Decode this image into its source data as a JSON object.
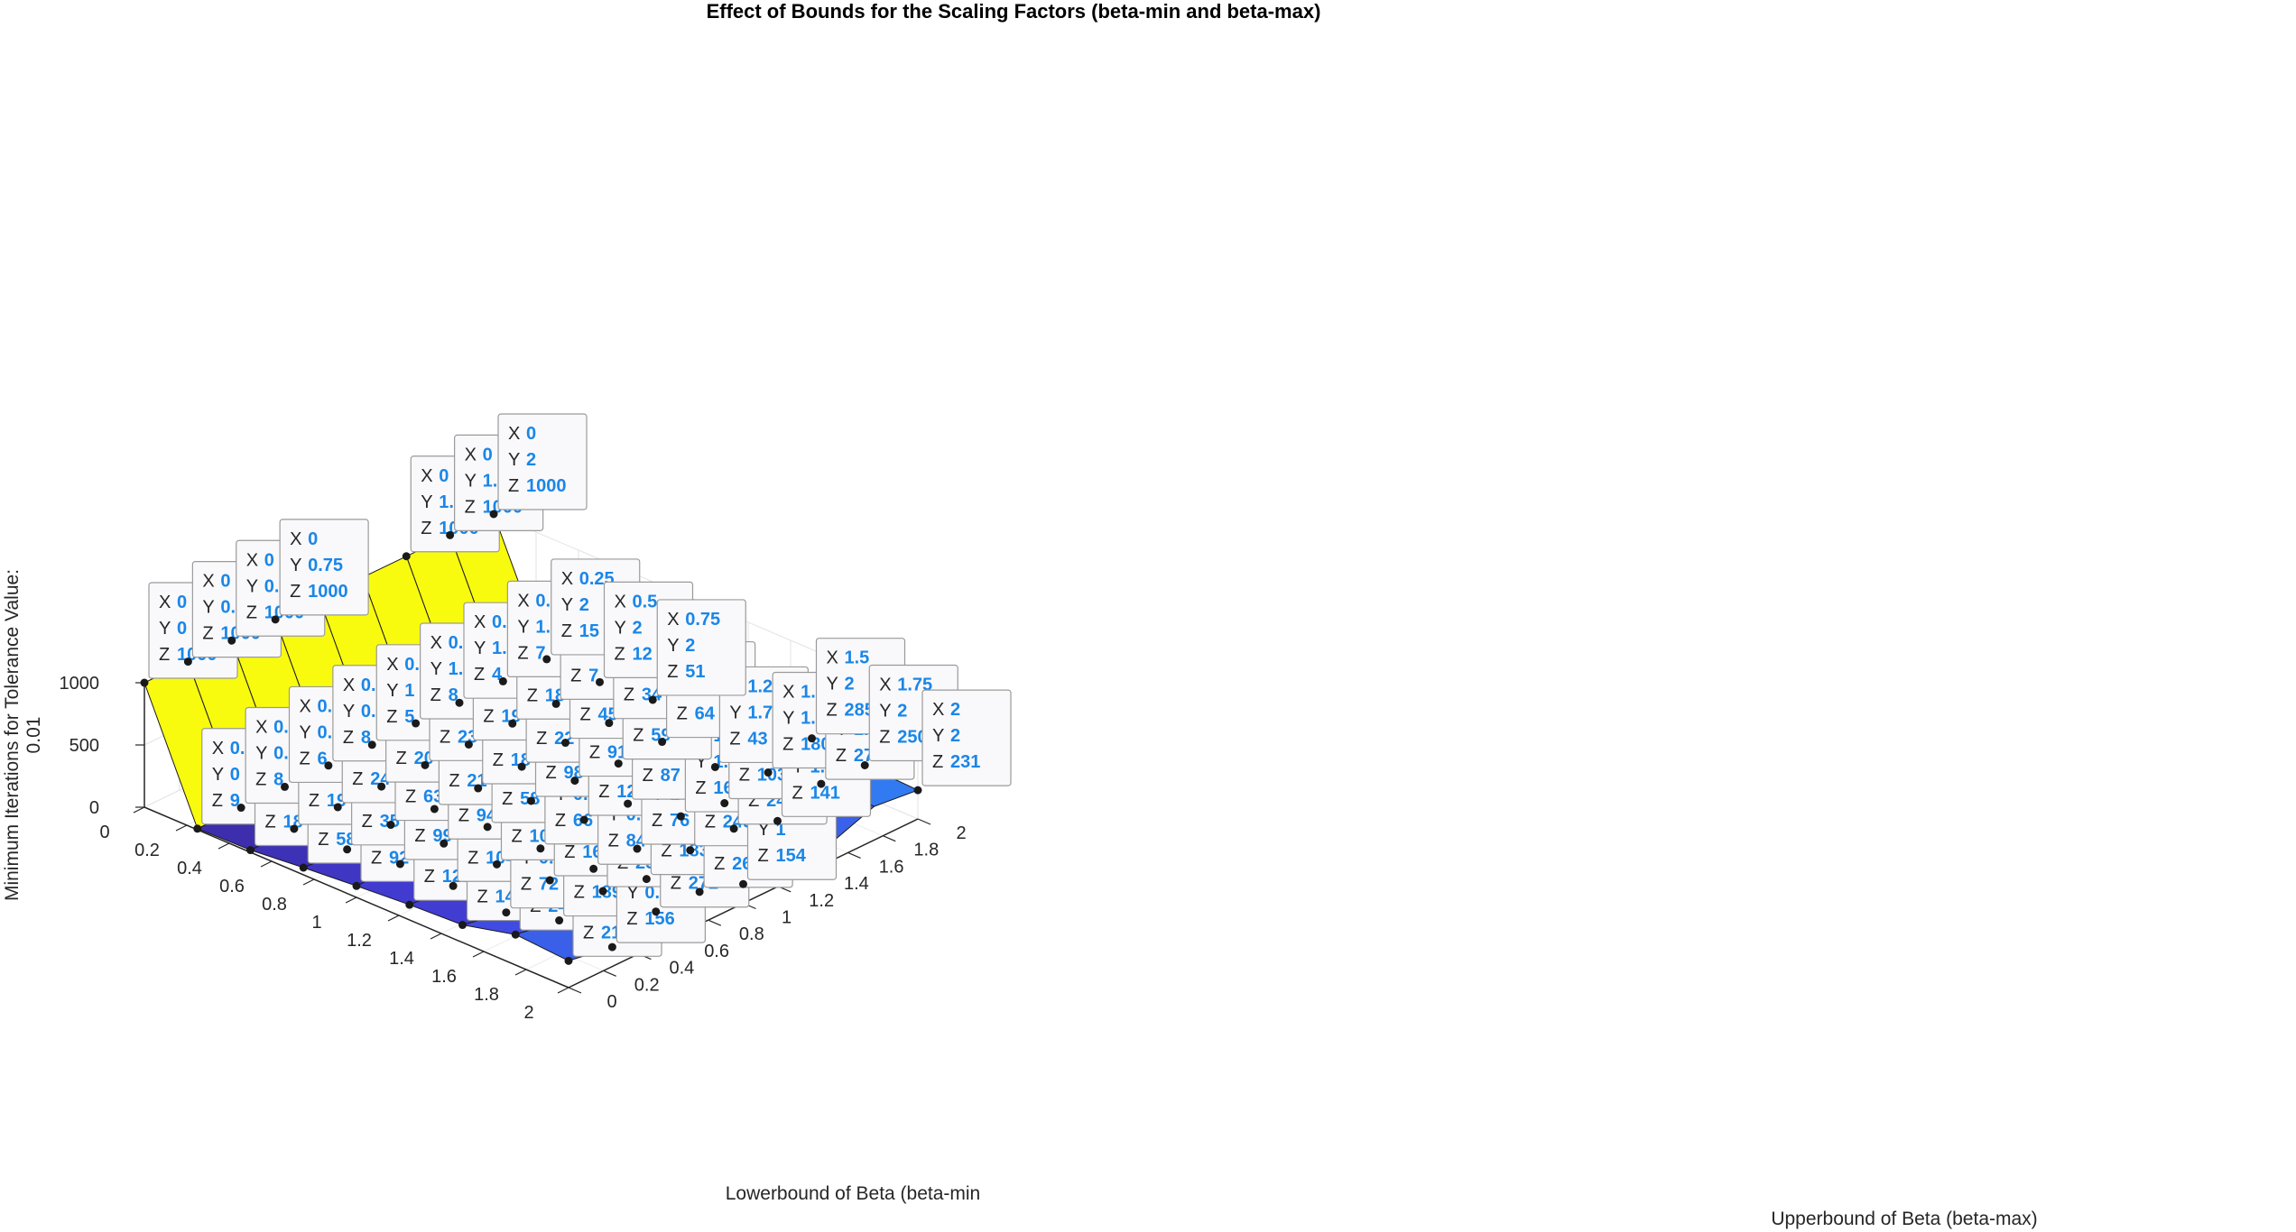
{
  "chart_data": {
    "type": "surface",
    "title": "Effect of Bounds for the Scaling Factors (beta-min and beta-max)",
    "xlabel": "Lowerbound of Beta (beta-min",
    "ylabel": "Upperbound of Beta (beta-max)",
    "zlabel": "Minimum Iterations for Tolerance Value: 0.01",
    "zlabel_lines": [
      "Minimum Iterations for Tolerance Value:",
      "0.01"
    ],
    "x": [
      0,
      0.25,
      0.5,
      0.75,
      1,
      1.25,
      1.5,
      1.75,
      2
    ],
    "y": [
      0,
      0.25,
      0.5,
      0.75,
      1,
      1.25,
      1.5,
      1.75,
      2
    ],
    "z_by_y": [
      [
        1000,
        9,
        18,
        58,
        92,
        122,
        141,
        245,
        215
      ],
      [
        1000,
        8,
        19,
        35,
        99,
        104,
        72,
        189,
        156
      ],
      [
        1000,
        6,
        24,
        63,
        94,
        108,
        161,
        255,
        272
      ],
      [
        1000,
        8,
        20,
        21,
        58,
        66,
        84,
        183,
        261
      ],
      [
        1000,
        5,
        23,
        18,
        98,
        127,
        76,
        245,
        154
      ],
      [
        1000,
        8,
        19,
        22,
        91,
        87,
        167,
        249,
        141
      ],
      [
        1000,
        4,
        18,
        45,
        59,
        43,
        103,
        141,
        null
      ],
      [
        1000,
        7,
        7,
        34,
        64,
        43,
        180,
        270,
        null
      ],
      [
        1000,
        15,
        12,
        51,
        null,
        null,
        285,
        250,
        231
      ]
    ],
    "xticks": [
      "0",
      "0.2",
      "0.4",
      "0.6",
      "0.8",
      "1",
      "1.2",
      "1.4",
      "1.6",
      "1.8",
      "2"
    ],
    "yticks": [
      "0",
      "0.2",
      "0.4",
      "0.6",
      "0.8",
      "1",
      "1.2",
      "1.4",
      "1.6",
      "1.8",
      "2"
    ],
    "zticks": [
      "0",
      "500",
      "1000"
    ],
    "zlim": [
      0,
      1000
    ],
    "grid": true,
    "colormap": "parula"
  },
  "datatips": [
    {
      "X": "0",
      "Y": "0",
      "Z": "1000"
    },
    {
      "X": "0.25",
      "Y": "0",
      "Z": "9"
    },
    {
      "X": "0.5",
      "Y": "0",
      "Z": "18"
    },
    {
      "X": "0.75",
      "Y": "0",
      "Z": "58"
    },
    {
      "X": "1",
      "Y": "0",
      "Z": "92"
    },
    {
      "X": "1.25",
      "Y": "0",
      "Z": "122"
    },
    {
      "X": "1.5",
      "Y": "0",
      "Z": "141"
    },
    {
      "X": "1.75",
      "Y": "0",
      "Z": "245"
    },
    {
      "X": "2",
      "Y": "0",
      "Z": "215"
    },
    {
      "X": "0",
      "Y": "0.25",
      "Z": "1000"
    },
    {
      "X": "0.25",
      "Y": "0.25",
      "Z": "8"
    },
    {
      "X": "0.5",
      "Y": "0.25",
      "Z": "19"
    },
    {
      "X": "0.75",
      "Y": "0.25",
      "Z": "35"
    },
    {
      "X": "1",
      "Y": "0.25",
      "Z": "99"
    },
    {
      "X": "1.25",
      "Y": "0.25",
      "Z": "104"
    },
    {
      "X": "1.5",
      "Y": "0.25",
      "Z": "72"
    },
    {
      "X": "1.75",
      "Y": "0.25",
      "Z": "189"
    },
    {
      "X": "2",
      "Y": "0.25",
      "Z": "156"
    },
    {
      "X": "0",
      "Y": "0.5",
      "Z": "1000"
    },
    {
      "X": "0.25",
      "Y": "0.5",
      "Z": "6"
    },
    {
      "X": "0.5",
      "Y": "0.5",
      "Z": "24"
    },
    {
      "X": "0.75",
      "Y": "0.5",
      "Z": "63"
    },
    {
      "X": "1",
      "Y": "0.5",
      "Z": "94"
    },
    {
      "X": "1.25",
      "Y": "0.5",
      "Z": "108"
    },
    {
      "X": "1.5",
      "Y": "0.5",
      "Z": "161"
    },
    {
      "X": "1.75",
      "Y": "0.5",
      "Z": "255"
    },
    {
      "X": "2",
      "Y": "0.5",
      "Z": "272"
    },
    {
      "X": "0",
      "Y": "0.75",
      "Z": "1000"
    },
    {
      "X": "0.25",
      "Y": "0.75",
      "Z": "8"
    },
    {
      "X": "0.5",
      "Y": "0.75",
      "Z": "20"
    },
    {
      "X": "0.75",
      "Y": "0.75",
      "Z": "21"
    },
    {
      "X": "1",
      "Y": "0.75",
      "Z": "58"
    },
    {
      "X": "1.25",
      "Y": "0.75",
      "Z": "66"
    },
    {
      "X": "1.5",
      "Y": "0.75",
      "Z": "84"
    },
    {
      "X": "1.75",
      "Y": "0.75",
      "Z": "183"
    },
    {
      "X": "2",
      "Y": "0.75",
      "Z": "261"
    },
    {
      "X": "0.25",
      "Y": "1",
      "Z": "5"
    },
    {
      "X": "0.5",
      "Y": "1",
      "Z": "23"
    },
    {
      "X": "0.75",
      "Y": "1",
      "Z": "18"
    },
    {
      "X": "1",
      "Y": "1",
      "Z": "98"
    },
    {
      "X": "1.25",
      "Y": "1",
      "Z": "127"
    },
    {
      "X": "1.5",
      "Y": "1",
      "Z": "76"
    },
    {
      "X": "1.75",
      "Y": "1",
      "Z": "245"
    },
    {
      "X": "2",
      "Y": "1",
      "Z": "154"
    },
    {
      "X": "0.25",
      "Y": "1.25",
      "Z": "8"
    },
    {
      "X": "0.5",
      "Y": "1.25",
      "Z": "19"
    },
    {
      "X": "0.75",
      "Y": "1.25",
      "Z": "22"
    },
    {
      "X": "1",
      "Y": "1.25",
      "Z": "91"
    },
    {
      "X": "1.25",
      "Y": "1.25",
      "Z": "87"
    },
    {
      "X": "1.5",
      "Y": "1.25",
      "Z": "167"
    },
    {
      "X": "1.75",
      "Y": "1.25",
      "Z": "249"
    },
    {
      "X": "0",
      "Y": "1.5",
      "Z": "1000"
    },
    {
      "X": "0.25",
      "Y": "1.5",
      "Z": "4"
    },
    {
      "X": "0.5",
      "Y": "1.5",
      "Z": "18"
    },
    {
      "X": "0.75",
      "Y": "1.5",
      "Z": "45"
    },
    {
      "X": "1",
      "Y": "1.5",
      "Z": "59"
    },
    {
      "X": "1.5",
      "Y": "1.5",
      "Z": "103"
    },
    {
      "X": "1.75",
      "Y": "1.5",
      "Z": "141"
    },
    {
      "X": "0",
      "Y": "1.75",
      "Z": "1000"
    },
    {
      "X": "0.25",
      "Y": "1.75",
      "Z": "7"
    },
    {
      "X": "0.5",
      "Y": "1.75",
      "Z": "7"
    },
    {
      "X": "0.75",
      "Y": "1.75",
      "Z": "34"
    },
    {
      "X": "1",
      "Y": "1.75",
      "Z": "64"
    },
    {
      "X": "1.25",
      "Y": "1.75",
      "Z": "43"
    },
    {
      "X": "1.5",
      "Y": "1.75",
      "Z": "180"
    },
    {
      "X": "1.75",
      "Y": "1.75",
      "Z": "270"
    },
    {
      "X": "0",
      "Y": "2",
      "Z": "1000"
    },
    {
      "X": "0.25",
      "Y": "2",
      "Z": "15"
    },
    {
      "X": "0.5",
      "Y": "2",
      "Z": "12"
    },
    {
      "X": "0.75",
      "Y": "2",
      "Z": "51"
    },
    {
      "X": "1.5",
      "Y": "2",
      "Z": "285"
    },
    {
      "X": "1.75",
      "Y": "2",
      "Z": "250"
    },
    {
      "X": "2",
      "Y": "2",
      "Z": "231"
    }
  ],
  "colors": {
    "yellow": "#f9fb0e",
    "low": "#3b2ca8",
    "mid": "#4340de",
    "high": "#2e87f5",
    "tip_value": "#1a86e8"
  }
}
